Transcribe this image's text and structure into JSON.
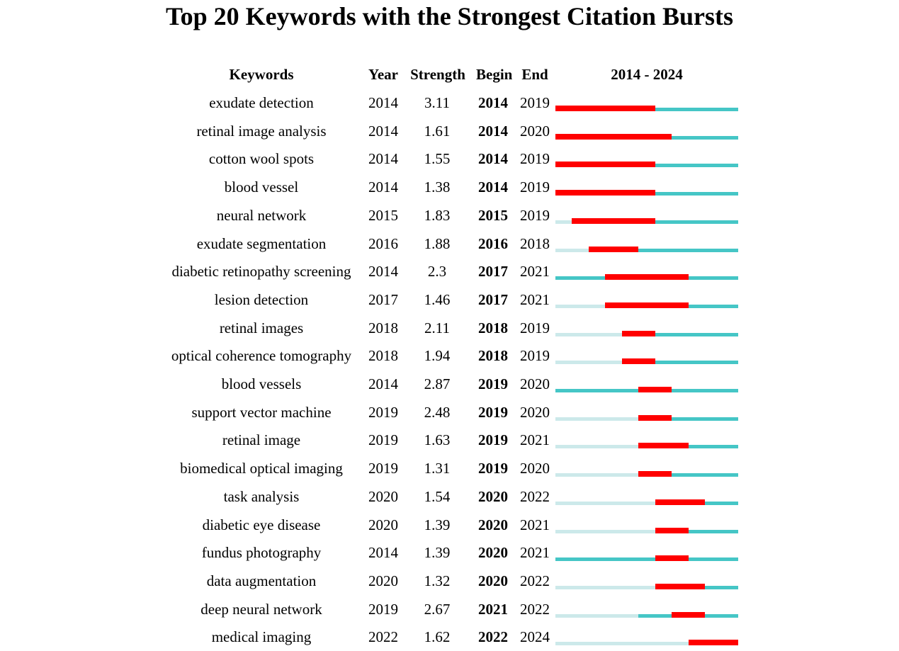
{
  "chart_data": {
    "type": "table",
    "title": "Top 20 Keywords with the Strongest Citation Bursts",
    "headers": {
      "keyword": "Keywords",
      "year": "Year",
      "strength": "Strength",
      "begin": "Begin",
      "end": "End",
      "timeline": "2014 - 2024"
    },
    "range": [
      2014,
      2024
    ],
    "colors": {
      "burst": "#ff0000",
      "active": "#45c6c6",
      "inactive": "#cce9ea"
    },
    "rows": [
      {
        "keyword": "exudate detection",
        "year": "2014",
        "strength": "3.11",
        "begin": "2014",
        "end": "2019"
      },
      {
        "keyword": "retinal image analysis",
        "year": "2014",
        "strength": "1.61",
        "begin": "2014",
        "end": "2020"
      },
      {
        "keyword": "cotton wool spots",
        "year": "2014",
        "strength": "1.55",
        "begin": "2014",
        "end": "2019"
      },
      {
        "keyword": "blood vessel",
        "year": "2014",
        "strength": "1.38",
        "begin": "2014",
        "end": "2019"
      },
      {
        "keyword": "neural network",
        "year": "2015",
        "strength": "1.83",
        "begin": "2015",
        "end": "2019"
      },
      {
        "keyword": "exudate segmentation",
        "year": "2016",
        "strength": "1.88",
        "begin": "2016",
        "end": "2018"
      },
      {
        "keyword": "diabetic retinopathy screening",
        "year": "2014",
        "strength": "2.3",
        "begin": "2017",
        "end": "2021"
      },
      {
        "keyword": "lesion detection",
        "year": "2017",
        "strength": "1.46",
        "begin": "2017",
        "end": "2021"
      },
      {
        "keyword": "retinal images",
        "year": "2018",
        "strength": "2.11",
        "begin": "2018",
        "end": "2019"
      },
      {
        "keyword": "optical coherence tomography",
        "year": "2018",
        "strength": "1.94",
        "begin": "2018",
        "end": "2019"
      },
      {
        "keyword": "blood vessels",
        "year": "2014",
        "strength": "2.87",
        "begin": "2019",
        "end": "2020"
      },
      {
        "keyword": "support vector machine",
        "year": "2019",
        "strength": "2.48",
        "begin": "2019",
        "end": "2020"
      },
      {
        "keyword": "retinal image",
        "year": "2019",
        "strength": "1.63",
        "begin": "2019",
        "end": "2021"
      },
      {
        "keyword": "biomedical optical imaging",
        "year": "2019",
        "strength": "1.31",
        "begin": "2019",
        "end": "2020"
      },
      {
        "keyword": "task analysis",
        "year": "2020",
        "strength": "1.54",
        "begin": "2020",
        "end": "2022"
      },
      {
        "keyword": "diabetic eye disease",
        "year": "2020",
        "strength": "1.39",
        "begin": "2020",
        "end": "2021"
      },
      {
        "keyword": "fundus photography",
        "year": "2014",
        "strength": "1.39",
        "begin": "2020",
        "end": "2021"
      },
      {
        "keyword": "data augmentation",
        "year": "2020",
        "strength": "1.32",
        "begin": "2020",
        "end": "2022"
      },
      {
        "keyword": "deep neural network",
        "year": "2019",
        "strength": "2.67",
        "begin": "2021",
        "end": "2022"
      },
      {
        "keyword": "medical imaging",
        "year": "2022",
        "strength": "1.62",
        "begin": "2022",
        "end": "2024"
      }
    ]
  }
}
